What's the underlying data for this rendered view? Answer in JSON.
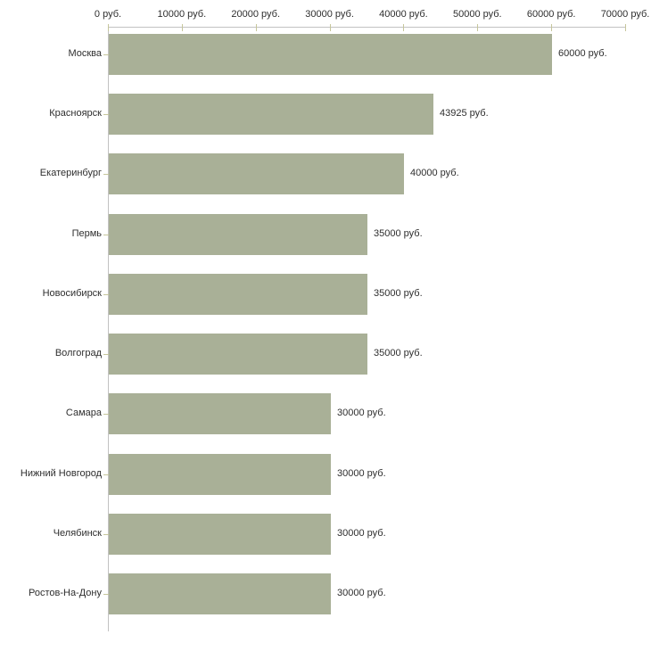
{
  "chart_data": {
    "type": "bar",
    "orientation": "horizontal",
    "title": "",
    "xlabel": "",
    "ylabel": "",
    "currency_suffix": " руб.",
    "categories": [
      "Москва",
      "Красноярск",
      "Екатеринбург",
      "Пермь",
      "Новосибирск",
      "Волгоград",
      "Самара",
      "Нижний Новгород",
      "Челябинск",
      "Ростов-На-Дону"
    ],
    "values": [
      60000,
      43925,
      40000,
      35000,
      35000,
      35000,
      30000,
      30000,
      30000,
      30000
    ],
    "value_labels": [
      "60000 руб.",
      "43925 руб.",
      "40000 руб.",
      "35000 руб.",
      "35000 руб.",
      "35000 руб.",
      "30000 руб.",
      "30000 руб.",
      "30000 руб.",
      "30000 руб."
    ],
    "x_tick_values": [
      0,
      10000,
      20000,
      30000,
      40000,
      50000,
      60000,
      70000
    ],
    "x_tick_labels": [
      "0 руб.",
      "10000 руб.",
      "20000 руб.",
      "30000 руб.",
      "40000 руб.",
      "50000 руб.",
      "60000 руб.",
      "70000 руб."
    ],
    "xlim": [
      0,
      70000
    ],
    "legend": null,
    "grid": false,
    "colors": {
      "bar": "#a9b097",
      "axis_line": "#c2c2c2",
      "tick_mark": "#c6c69c",
      "text": "#2e2e2e",
      "background": "#ffffff"
    }
  }
}
